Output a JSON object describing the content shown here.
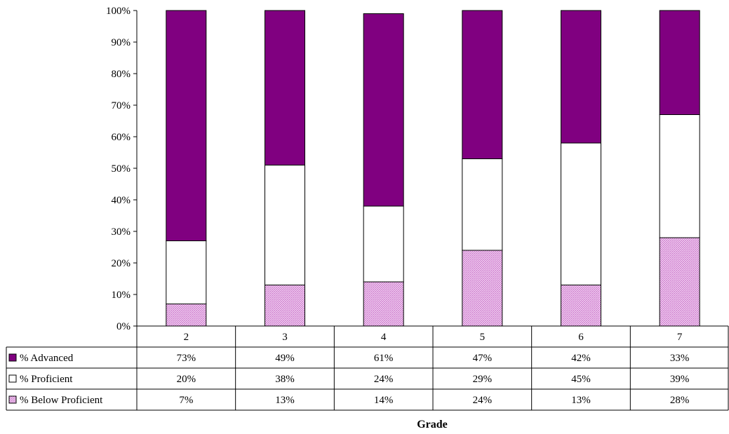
{
  "chart_data": {
    "type": "bar",
    "stacked": true,
    "percent_stacked": true,
    "title": "",
    "xlabel": "Grade",
    "ylabel": "",
    "ylim": [
      0,
      100
    ],
    "y_tick_values": [
      0,
      10,
      20,
      30,
      40,
      50,
      60,
      70,
      80,
      90,
      100
    ],
    "y_tick_labels": [
      "0%",
      "10%",
      "20%",
      "30%",
      "40%",
      "50%",
      "60%",
      "70%",
      "80%",
      "90%",
      "100%"
    ],
    "categories": [
      "2",
      "3",
      "4",
      "5",
      "6",
      "7"
    ],
    "series": [
      {
        "name": "% Below Proficient",
        "values": [
          7,
          13,
          14,
          24,
          13,
          28
        ],
        "labels": [
          "7%",
          "13%",
          "14%",
          "24%",
          "13%",
          "28%"
        ],
        "color": "#e3b3e3",
        "pattern": "hatched"
      },
      {
        "name": "%  Proficient",
        "values": [
          20,
          38,
          24,
          29,
          45,
          39
        ],
        "labels": [
          "20%",
          "38%",
          "24%",
          "29%",
          "45%",
          "39%"
        ],
        "color": "#ffffff",
        "pattern": "solid"
      },
      {
        "name": "%  Advanced",
        "values": [
          73,
          49,
          61,
          47,
          42,
          33
        ],
        "labels": [
          "73%",
          "49%",
          "61%",
          "47%",
          "42%",
          "33%"
        ],
        "color": "#800080",
        "pattern": "solid"
      }
    ],
    "data_table_row_order": [
      "%  Advanced",
      "%  Proficient",
      "% Below Proficient"
    ],
    "grid": false,
    "legend": "data table (left keys)"
  }
}
